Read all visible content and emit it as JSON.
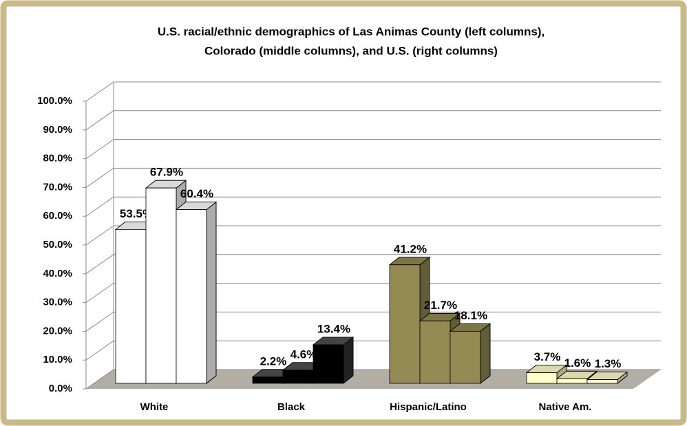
{
  "chart_data": {
    "type": "bar3d",
    "title": [
      "U.S. racial/ethnic demographics of Las Animas County (left columns),",
      "Colorado (middle columns), and U.S. (right columns)"
    ],
    "categories": [
      "White",
      "Black",
      "Hispanic/Latino",
      "Native Am."
    ],
    "colors": [
      "#ffffff",
      "#000000",
      "#948a54",
      "#ffffcc"
    ],
    "series": [
      {
        "values": [
          53.5,
          2.2,
          41.2,
          3.7
        ],
        "value_labels": [
          "53.5%",
          "2.2%",
          "41.2%",
          "3.7%"
        ]
      },
      {
        "values": [
          67.9,
          4.6,
          21.7,
          1.6
        ],
        "value_labels": [
          "67.9%",
          "4.6%",
          "21.7%",
          "1.6%"
        ]
      },
      {
        "values": [
          60.4,
          13.4,
          18.1,
          1.3
        ],
        "value_labels": [
          "60.4%",
          "13.4%",
          "18.1%",
          "1.3%"
        ]
      }
    ],
    "ylim": [
      0,
      100
    ],
    "yticks": [
      {
        "value": 0,
        "label": "0.0%"
      },
      {
        "value": 10,
        "label": "10.0%"
      },
      {
        "value": 20,
        "label": "20.0%"
      },
      {
        "value": 30,
        "label": "30.0%"
      },
      {
        "value": 40,
        "label": "40.0%"
      },
      {
        "value": 50,
        "label": "50.0%"
      },
      {
        "value": 60,
        "label": "60.0%"
      },
      {
        "value": 70,
        "label": "70.0%"
      },
      {
        "value": 80,
        "label": "80.0%"
      },
      {
        "value": 90,
        "label": "90.0%"
      },
      {
        "value": 100,
        "label": "100.0%"
      }
    ],
    "grid": true
  }
}
